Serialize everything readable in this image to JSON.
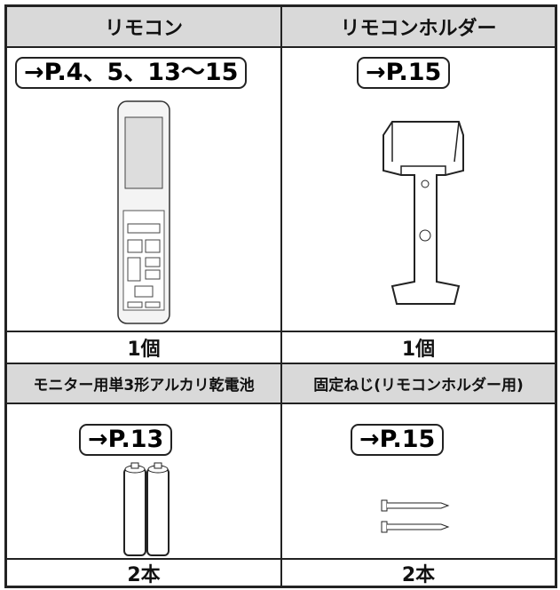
{
  "items": [
    {
      "name": "リモコン",
      "ref": "→P.4、5、13～15",
      "count": "1個"
    },
    {
      "name": "リモコンホルダー",
      "ref": "→P.15",
      "count": "1個"
    },
    {
      "name": "モニター用単3形アルカリ乾電池",
      "ref": "→P.13",
      "count": "2本"
    },
    {
      "name": "固定ねじ(リモコンホルダー用)",
      "ref": "→P.15",
      "count": "2本"
    }
  ]
}
